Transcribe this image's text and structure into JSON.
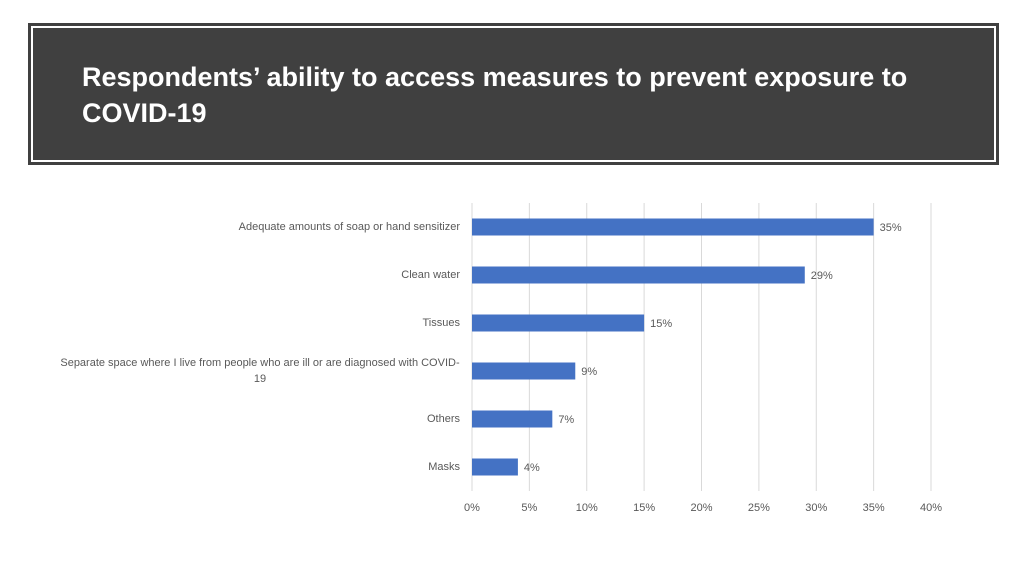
{
  "chart_data": {
    "type": "bar",
    "orientation": "horizontal",
    "title": "Respondents’ ability to access measures to prevent exposure to COVID-19",
    "categories": [
      "Adequate amounts of soap or hand sensitizer",
      "Clean water",
      "Tissues",
      "Separate space where I live from people who are ill or are diagnosed with COVID-19",
      "Others",
      "Masks"
    ],
    "values": [
      35,
      29,
      15,
      9,
      7,
      4
    ],
    "value_labels": [
      "35%",
      "29%",
      "15%",
      "9%",
      "7%",
      "4%"
    ],
    "color": "#4472c4",
    "xlim": [
      0,
      40
    ],
    "xticks": [
      {
        "value": 0,
        "label": "0%"
      },
      {
        "value": 5,
        "label": "5%"
      },
      {
        "value": 10,
        "label": "10%"
      },
      {
        "value": 15,
        "label": "15%"
      },
      {
        "value": 20,
        "label": "20%"
      },
      {
        "value": 25,
        "label": "25%"
      },
      {
        "value": 30,
        "label": "30%"
      },
      {
        "value": 35,
        "label": "35%"
      },
      {
        "value": 40,
        "label": "40%"
      }
    ],
    "grid": true
  }
}
